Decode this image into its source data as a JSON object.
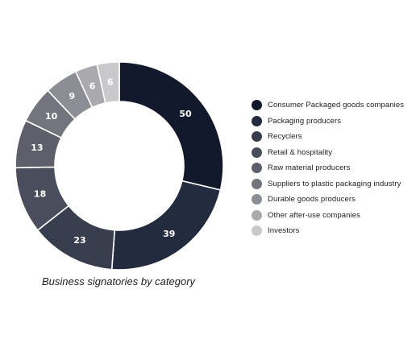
{
  "chart_data": {
    "type": "pie",
    "subtype": "donut",
    "title": "Business signatories by category",
    "legend_position": "right",
    "categories": [
      "Consumer Packaged goods companies",
      "Packaging producers",
      "Recyclers",
      "Retail & hospitality",
      "Raw material producers",
      "Suppliers to plastic packaging industry",
      "Durable goods producers",
      "Other after-use companies",
      "Investors"
    ],
    "values": [
      50,
      39,
      23,
      18,
      13,
      10,
      9,
      6,
      6
    ],
    "colors": [
      "#12192d",
      "#232b3e",
      "#383e4e",
      "#4a4d5b",
      "#5f5f6c",
      "#74747e",
      "#8d8d95",
      "#a9a9ae",
      "#c9c9cc"
    ]
  }
}
